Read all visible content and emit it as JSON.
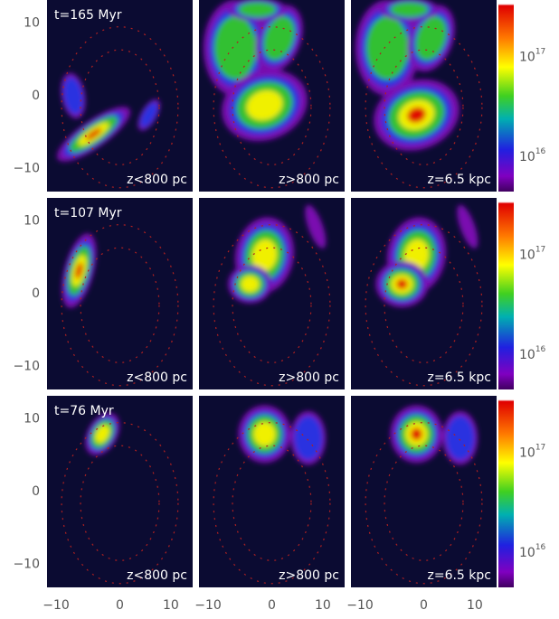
{
  "rows": [
    {
      "time": "t=165 Myr"
    },
    {
      "time": "t=107 Myr"
    },
    {
      "time": "t=76 Myr"
    }
  ],
  "panel_labels": [
    "z<800 pc",
    "z>800 pc",
    "z=6.5 kpc"
  ],
  "y_tick_labels": [
    "10",
    "0",
    "−10"
  ],
  "x_tick_labels": [
    "−10",
    "0",
    "10"
  ],
  "colorbar_labels": [
    {
      "base": "10",
      "exponent": "17"
    },
    {
      "base": "10",
      "exponent": "16"
    }
  ]
}
